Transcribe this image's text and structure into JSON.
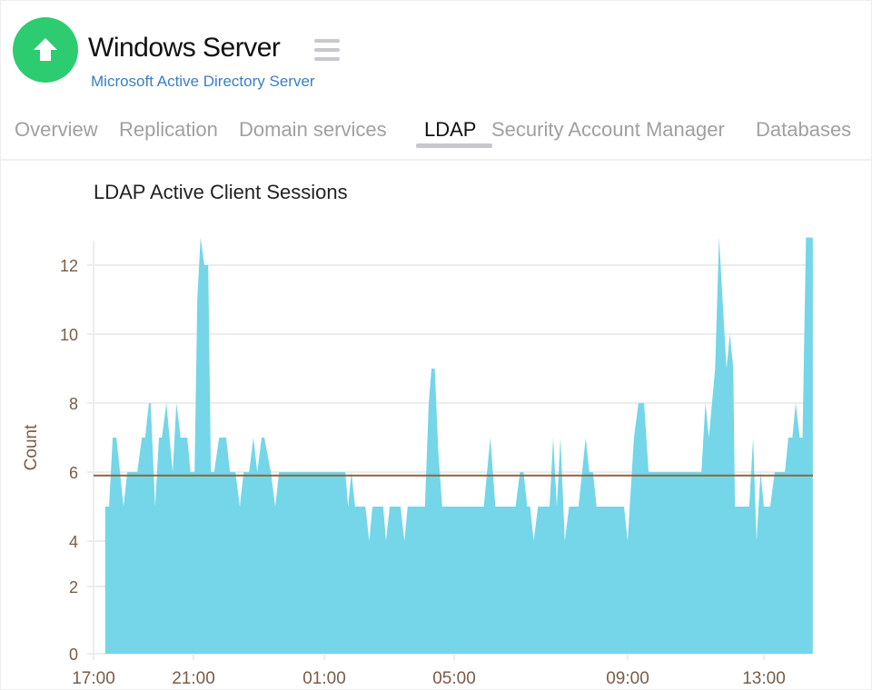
{
  "header": {
    "title": "Windows Server",
    "subtitle": "Microsoft Active Directory Server",
    "logo_icon": "arrow-up-icon",
    "menu_icon": "hamburger-icon",
    "logo_color": "#2ecc71"
  },
  "tabs": [
    {
      "label": "Overview"
    },
    {
      "label": "Replication"
    },
    {
      "label": "Domain services"
    },
    {
      "label": "LDAP",
      "active": true
    },
    {
      "label": "Security Account Manager"
    },
    {
      "label": "Databases"
    }
  ],
  "chart_data": {
    "type": "area",
    "title": "LDAP Active Client Sessions",
    "xlabel": "",
    "ylabel": "Count",
    "x_ticks": [
      "17:00",
      "21:00",
      "01:00",
      "05:00",
      "09:00",
      "13:00"
    ],
    "y_ticks": [
      0,
      2,
      4,
      6,
      8,
      10,
      12
    ],
    "grid": true,
    "fill_color": "#74d6e8",
    "reference_line": {
      "value": 5.9,
      "color": "#8b6447"
    },
    "points": [
      [
        "17:28",
        0
      ],
      [
        "17:28",
        5
      ],
      [
        "17:37",
        5
      ],
      [
        "17:46",
        7
      ],
      [
        "17:55",
        7
      ],
      [
        "18:12",
        5
      ],
      [
        "18:21",
        6
      ],
      [
        "18:45",
        6
      ],
      [
        "18:56",
        7
      ],
      [
        "19:04",
        7
      ],
      [
        "19:13",
        8
      ],
      [
        "19:17",
        8
      ],
      [
        "19:28",
        5
      ],
      [
        "19:37",
        7
      ],
      [
        "19:44",
        7
      ],
      [
        "19:55",
        8
      ],
      [
        "20:10",
        6
      ],
      [
        "20:19",
        8
      ],
      [
        "20:29",
        7
      ],
      [
        "20:45",
        7
      ],
      [
        "20:53",
        6
      ],
      [
        "21:02",
        6
      ],
      [
        "21:07",
        11
      ],
      [
        "21:13",
        12.8
      ],
      [
        "21:20",
        12
      ],
      [
        "21:27",
        12
      ],
      [
        "21:32",
        6
      ],
      [
        "21:38",
        6
      ],
      [
        "21:47",
        7
      ],
      [
        "22:00",
        7
      ],
      [
        "22:07",
        6
      ],
      [
        "22:17",
        6
      ],
      [
        "22:25",
        5
      ],
      [
        "22:32",
        6
      ],
      [
        "22:42",
        6
      ],
      [
        "22:50",
        7
      ],
      [
        "22:57",
        6
      ],
      [
        "23:05",
        7
      ],
      [
        "23:10",
        7
      ],
      [
        "23:22",
        6
      ],
      [
        "23:30",
        5
      ],
      [
        "23:37",
        6
      ],
      [
        "01:39",
        6
      ],
      [
        "01:44",
        5
      ],
      [
        "01:50",
        6
      ],
      [
        "01:57",
        5
      ],
      [
        "02:16",
        5
      ],
      [
        "02:23",
        4
      ],
      [
        "02:29",
        5
      ],
      [
        "02:49",
        5
      ],
      [
        "02:54",
        4
      ],
      [
        "03:01",
        5
      ],
      [
        "03:21",
        5
      ],
      [
        "03:28",
        4
      ],
      [
        "03:34",
        5
      ],
      [
        "04:06",
        5
      ],
      [
        "04:13",
        8
      ],
      [
        "04:18",
        9
      ],
      [
        "04:24",
        9
      ],
      [
        "04:31",
        6.5
      ],
      [
        "04:38",
        5
      ],
      [
        "05:41",
        5
      ],
      [
        "05:50",
        7
      ],
      [
        "05:57",
        5
      ],
      [
        "06:25",
        5
      ],
      [
        "06:31",
        6
      ],
      [
        "06:36",
        6
      ],
      [
        "06:41",
        5
      ],
      [
        "06:45",
        5
      ],
      [
        "06:50",
        4
      ],
      [
        "06:56",
        5
      ],
      [
        "07:06",
        5
      ],
      [
        "07:12",
        5
      ],
      [
        "07:17",
        7
      ],
      [
        "07:22",
        5
      ],
      [
        "07:27",
        7
      ],
      [
        "07:33",
        4
      ],
      [
        "07:39",
        5
      ],
      [
        "07:52",
        5
      ],
      [
        "08:02",
        7
      ],
      [
        "08:07",
        6
      ],
      [
        "08:12",
        6
      ],
      [
        "08:17",
        5
      ],
      [
        "08:55",
        5
      ],
      [
        "09:00",
        4
      ],
      [
        "09:11",
        7
      ],
      [
        "09:19",
        8
      ],
      [
        "09:29",
        8
      ],
      [
        "09:37",
        6
      ],
      [
        "11:10",
        6
      ],
      [
        "11:17",
        8
      ],
      [
        "11:23",
        7
      ],
      [
        "11:34",
        9
      ],
      [
        "11:41",
        12.8
      ],
      [
        "11:54",
        9
      ],
      [
        "12:00",
        10
      ],
      [
        "12:06",
        9
      ],
      [
        "12:09",
        5
      ],
      [
        "12:34",
        5
      ],
      [
        "12:41",
        7
      ],
      [
        "12:47",
        4
      ],
      [
        "12:54",
        6
      ],
      [
        "13:00",
        5
      ],
      [
        "13:11",
        5
      ],
      [
        "13:19",
        6
      ],
      [
        "13:37",
        6
      ],
      [
        "13:43",
        7
      ],
      [
        "13:50",
        7
      ],
      [
        "13:56",
        8
      ],
      [
        "14:03",
        7
      ],
      [
        "14:08",
        7
      ],
      [
        "14:14",
        12.8
      ],
      [
        "14:26",
        12.8
      ],
      [
        "14:26",
        0
      ]
    ]
  }
}
